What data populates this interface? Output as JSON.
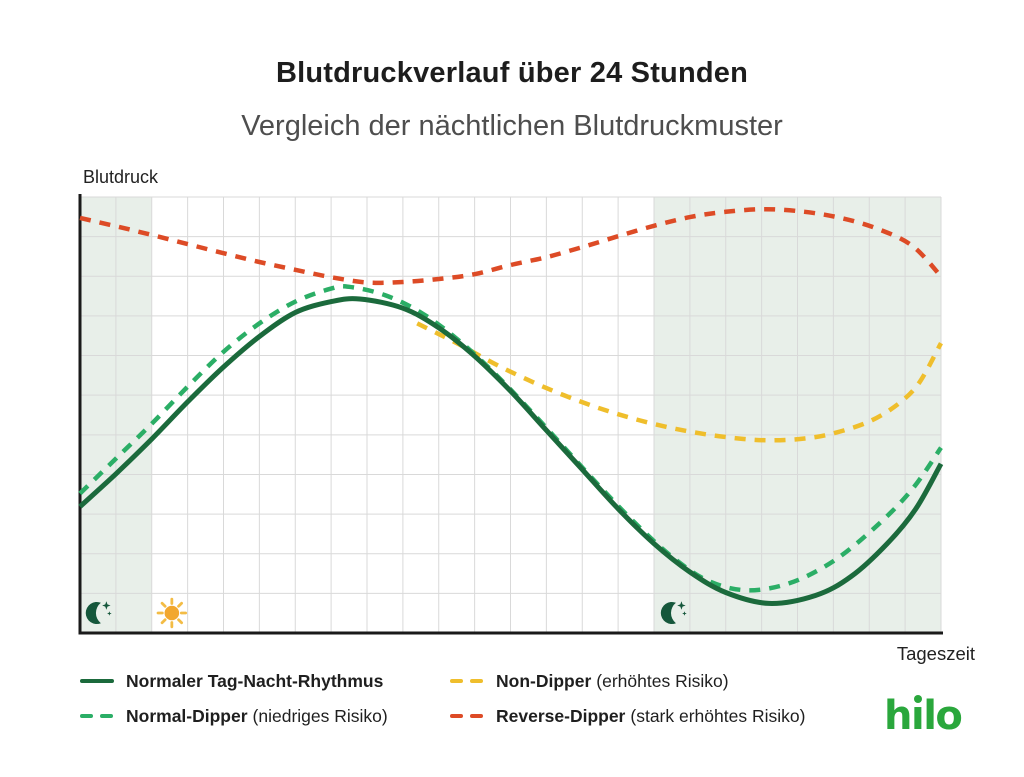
{
  "header": {
    "title": "Blutdruckverlauf über 24 Stunden",
    "subtitle": "Vergleich der nächtlichen Blutdruckmuster"
  },
  "chart_data": {
    "type": "line",
    "xlabel": "Tageszeit",
    "ylabel": "Blutdruck",
    "xlim": [
      0,
      24
    ],
    "ylim": [
      0,
      100
    ],
    "grid": {
      "columns": 24,
      "rows": 11,
      "color": "#d9d9d9",
      "on": true
    },
    "axis_color": "#1a1a1a",
    "night_band_color": "#e8efe9",
    "night_bands_hours": [
      [
        0,
        2
      ],
      [
        16,
        24
      ]
    ],
    "icons": [
      {
        "type": "moon",
        "hour": 0.47,
        "color": "#15573B"
      },
      {
        "type": "sun",
        "hour": 2.56,
        "color": "#F2A72E",
        "ray_color": "#F3BC45"
      },
      {
        "type": "moon",
        "hour": 16.5,
        "color": "#15573B"
      }
    ],
    "series": [
      {
        "name": "Normaler Tag-Nacht-Rhythmus",
        "color": "#1B6A3C",
        "dashed": false,
        "width": 5,
        "points": [
          [
            0,
            29
          ],
          [
            1,
            36.5
          ],
          [
            2,
            44.5
          ],
          [
            3,
            53
          ],
          [
            4,
            61
          ],
          [
            5,
            68
          ],
          [
            6,
            73.5
          ],
          [
            7,
            76
          ],
          [
            7.8,
            76.6
          ],
          [
            9,
            74.5
          ],
          [
            10,
            70
          ],
          [
            11,
            63.5
          ],
          [
            12,
            55.5
          ],
          [
            13,
            46.5
          ],
          [
            14,
            37.5
          ],
          [
            15,
            28.5
          ],
          [
            16,
            20.5
          ],
          [
            17,
            14
          ],
          [
            18,
            9.3
          ],
          [
            19.2,
            6.8
          ],
          [
            20.5,
            8.6
          ],
          [
            21.5,
            13
          ],
          [
            22.5,
            20.5
          ],
          [
            23.3,
            28.5
          ],
          [
            24,
            38.8
          ]
        ]
      },
      {
        "name": "Normal-Dipper",
        "color": "#2BAE66",
        "dashed": true,
        "width": 4.5,
        "points": [
          [
            0,
            32
          ],
          [
            1,
            40
          ],
          [
            2,
            48
          ],
          [
            3,
            56.5
          ],
          [
            4,
            64.5
          ],
          [
            5,
            71
          ],
          [
            6,
            76
          ],
          [
            7,
            79
          ],
          [
            7.5,
            79.4
          ],
          [
            8.5,
            77.5
          ],
          [
            9.5,
            73.5
          ],
          [
            10.5,
            67.5
          ],
          [
            11.5,
            60
          ],
          [
            12.5,
            51.5
          ],
          [
            13.5,
            42.5
          ],
          [
            14.5,
            33.5
          ],
          [
            15.5,
            25
          ],
          [
            16.5,
            17.5
          ],
          [
            17.5,
            12
          ],
          [
            18.6,
            9.8
          ],
          [
            19.8,
            11.5
          ],
          [
            21,
            16.5
          ],
          [
            22.2,
            24.5
          ],
          [
            23.2,
            33
          ],
          [
            24,
            42.5
          ]
        ]
      },
      {
        "name": "Non-Dipper",
        "color": "#EFBE2C",
        "dashed": true,
        "width": 4.5,
        "points": [
          [
            9.4,
            71
          ],
          [
            10.5,
            66.5
          ],
          [
            11.5,
            62
          ],
          [
            12.5,
            58
          ],
          [
            13.5,
            54.5
          ],
          [
            14.5,
            51.5
          ],
          [
            15.5,
            49
          ],
          [
            16.5,
            47
          ],
          [
            17.5,
            45.5
          ],
          [
            18.5,
            44.5
          ],
          [
            19.3,
            44.2
          ],
          [
            20.2,
            44.6
          ],
          [
            21,
            45.8
          ],
          [
            22,
            48.5
          ],
          [
            22.8,
            52.5
          ],
          [
            23.4,
            57.5
          ],
          [
            24,
            66.5
          ]
        ]
      },
      {
        "name": "Reverse-Dipper",
        "color": "#DD4B26",
        "dashed": true,
        "width": 4.5,
        "points": [
          [
            0,
            95.2
          ],
          [
            1,
            93.3
          ],
          [
            2,
            91.3
          ],
          [
            3,
            89.2
          ],
          [
            4,
            87.1
          ],
          [
            5,
            85.1
          ],
          [
            6,
            83.3
          ],
          [
            7,
            81.6
          ],
          [
            8,
            80.4
          ],
          [
            9,
            80.5
          ],
          [
            10,
            81.2
          ],
          [
            11,
            82.3
          ],
          [
            12,
            84.4
          ],
          [
            13,
            86.2
          ],
          [
            14,
            88.5
          ],
          [
            15,
            91
          ],
          [
            16,
            93.4
          ],
          [
            17,
            95.4
          ],
          [
            18,
            96.6
          ],
          [
            19.1,
            97.2
          ],
          [
            20.2,
            96.6
          ],
          [
            21.2,
            95.2
          ],
          [
            22.2,
            92.8
          ],
          [
            23.2,
            88.8
          ],
          [
            24,
            81.8
          ]
        ]
      }
    ]
  },
  "legend": {
    "items": [
      {
        "name": "Normaler Tag-Nacht-Rhythmus",
        "note": "",
        "series": 0
      },
      {
        "name": "Normal-Dipper",
        "note": "(niedriges Risiko)",
        "series": 1
      },
      {
        "name": "Non-Dipper",
        "note": "(erhöhtes Risiko)",
        "series": 2
      },
      {
        "name": "Reverse-Dipper",
        "note": "(stark erhöhtes Risiko)",
        "series": 3
      }
    ]
  },
  "logo": {
    "text": "hilo",
    "color": "#2AA73C"
  }
}
